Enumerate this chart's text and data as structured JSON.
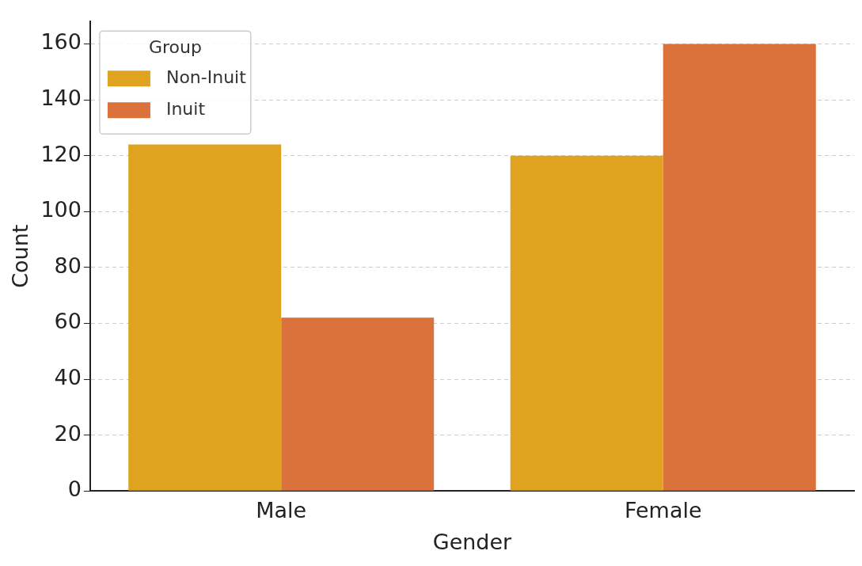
{
  "chart_data": {
    "type": "bar",
    "xlabel": "Gender",
    "ylabel": "Count",
    "legend_title": "Group",
    "categories": [
      "Male",
      "Female"
    ],
    "series": [
      {
        "name": "Non-Inuit",
        "color": "#dfa320",
        "values": [
          124,
          120
        ]
      },
      {
        "name": "Inuit",
        "color": "#db723b",
        "values": [
          62,
          160
        ]
      }
    ],
    "ylim": [
      0,
      168
    ],
    "yticks": [
      0,
      20,
      40,
      60,
      80,
      100,
      120,
      140,
      160
    ],
    "grid": "y",
    "legend": "top left"
  }
}
